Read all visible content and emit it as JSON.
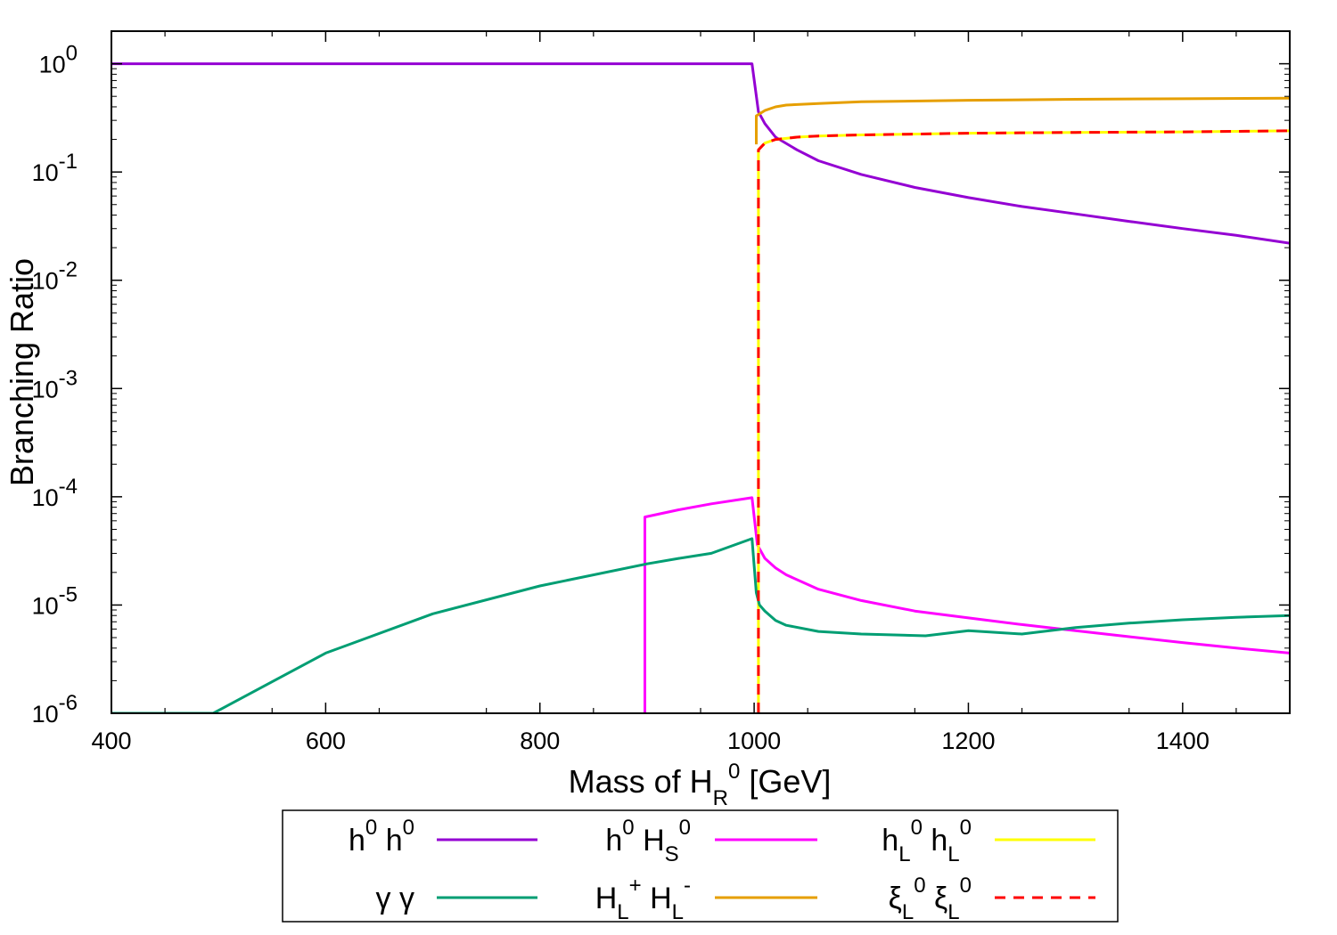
{
  "chart_data": {
    "type": "line",
    "xlabel": "Mass of H_R^0 [GeV]",
    "xlabel_parts": {
      "main": "Mass of H",
      "sub": "R",
      "sup": "0",
      "unit": "[GeV]"
    },
    "ylabel": "Branching Ratio",
    "xlim": [
      400,
      1500
    ],
    "ylim": [
      1e-06,
      2
    ],
    "y_scale": "log",
    "x_ticks": [
      "400",
      "600",
      "800",
      "1000",
      "1200",
      "1400"
    ],
    "y_ticks": [
      {
        "base": "10",
        "exp": "0"
      },
      {
        "base": "10",
        "exp": "-1"
      },
      {
        "base": "10",
        "exp": "-2"
      },
      {
        "base": "10",
        "exp": "-3"
      },
      {
        "base": "10",
        "exp": "-4"
      },
      {
        "base": "10",
        "exp": "-5"
      },
      {
        "base": "10",
        "exp": "-6"
      }
    ],
    "legend_placement": "bottom, outside plot",
    "series": [
      {
        "name": "h^0 h^0",
        "color": "#9400d3",
        "dash": false,
        "x": [
          400,
          600,
          800,
          900,
          950,
          998,
          1004,
          1010,
          1020,
          1040,
          1060,
          1100,
          1150,
          1200,
          1250,
          1300,
          1350,
          1400,
          1450,
          1500
        ],
        "y": [
          1,
          1,
          1,
          1,
          1,
          1,
          0.36,
          0.28,
          0.21,
          0.16,
          0.127,
          0.095,
          0.072,
          0.058,
          0.048,
          0.041,
          0.035,
          0.03,
          0.026,
          0.022
        ]
      },
      {
        "name": "h^0 H_S^0",
        "color": "#ff00ff",
        "dash": false,
        "x": [
          898,
          898,
          930,
          960,
          998,
          1003,
          1010,
          1020,
          1030,
          1060,
          1100,
          1150,
          1200,
          1250,
          1300,
          1350,
          1400,
          1450,
          1500
        ],
        "y": [
          1e-06,
          6.5e-05,
          7.6e-05,
          8.6e-05,
          9.8e-05,
          3.6e-05,
          2.7e-05,
          2.2e-05,
          1.9e-05,
          1.4e-05,
          1.1e-05,
          8.8e-06,
          7.6e-06,
          6.6e-06,
          5.8e-06,
          5.1e-06,
          4.5e-06,
          4e-06,
          3.6e-06
        ]
      },
      {
        "name": "h_L^0 h_L^0",
        "color": "#ffff00",
        "dash": false,
        "x": [
          1004,
          1004,
          1010,
          1020,
          1040,
          1060,
          1100,
          1200,
          1300,
          1400,
          1500
        ],
        "y": [
          1e-06,
          0.16,
          0.185,
          0.2,
          0.21,
          0.215,
          0.22,
          0.228,
          0.232,
          0.235,
          0.24
        ]
      },
      {
        "name": "γ γ",
        "color": "#009e73",
        "dash": false,
        "x": [
          400,
          495,
          600,
          700,
          800,
          900,
          930,
          960,
          998,
          1002,
          1005,
          1010,
          1020,
          1030,
          1060,
          1100,
          1160,
          1200,
          1250,
          1300,
          1350,
          1400,
          1450,
          1500
        ],
        "y": [
          1e-06,
          1e-06,
          3.6e-06,
          8.3e-06,
          1.5e-05,
          2.4e-05,
          2.7e-05,
          3e-05,
          4.1e-05,
          1.3e-05,
          1e-05,
          8.8e-06,
          7.2e-06,
          6.5e-06,
          5.7e-06,
          5.4e-06,
          5.2e-06,
          5.8e-06,
          5.4e-06,
          6.2e-06,
          6.8e-06,
          7.3e-06,
          7.7e-06,
          8e-06
        ]
      },
      {
        "name": "H_L^+ H_L^-",
        "color": "#e69f00",
        "dash": false,
        "x": [
          1002,
          1002,
          1010,
          1020,
          1030,
          1060,
          1100,
          1200,
          1300,
          1400,
          1500
        ],
        "y": [
          0.18,
          0.33,
          0.37,
          0.4,
          0.415,
          0.43,
          0.445,
          0.46,
          0.47,
          0.475,
          0.48
        ]
      },
      {
        "name": "ξ_L^0 ξ_L^0",
        "color": "#ff0000",
        "dash": true,
        "x": [
          1004,
          1004,
          1010,
          1020,
          1040,
          1060,
          1100,
          1200,
          1300,
          1400,
          1500
        ],
        "y": [
          1e-06,
          0.16,
          0.185,
          0.2,
          0.21,
          0.215,
          0.22,
          0.228,
          0.232,
          0.235,
          0.24
        ]
      }
    ],
    "legend": [
      {
        "main": "h",
        "sup": "0",
        "main2": " h",
        "sup2": "0"
      },
      {
        "main": "h",
        "sup": "0",
        "main2": " H",
        "sub2": "S",
        "sup2": "0"
      },
      {
        "main": "h",
        "sub": "L",
        "sup": "0",
        "main2": " h",
        "sub2": "L",
        "sup2": "0"
      },
      {
        "main": "γ γ"
      },
      {
        "main": "H",
        "sub": "L",
        "sup": "+",
        "main2": " H",
        "sub2": "L",
        "sup2": "-"
      },
      {
        "main": "ξ",
        "sub": "L",
        "sup": "0",
        "main2": " ξ",
        "sub2": "L",
        "sup2": "0"
      }
    ]
  }
}
